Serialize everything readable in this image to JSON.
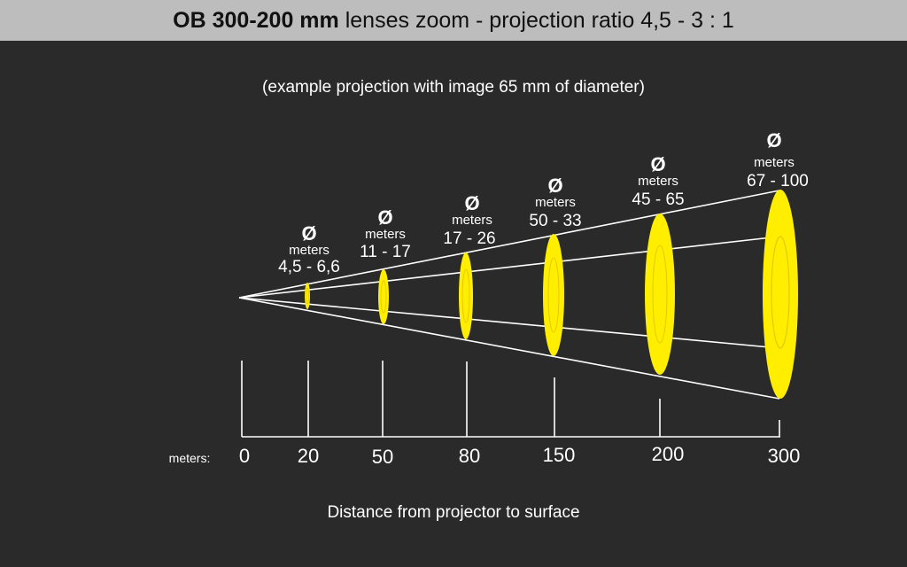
{
  "header": {
    "title_bold": "OB 300-200 mm",
    "title_rest": " lenses zoom - projection ratio 4,5 - 3 : 1"
  },
  "subtitle": "(example projection with image 65 mm of diameter)",
  "axis": {
    "unit_label": "meters:",
    "caption": "Distance from projector to surface",
    "ticks": [
      "0",
      "20",
      "50",
      "80",
      "150",
      "200",
      "300"
    ]
  },
  "projections": [
    {
      "symbol": "Ø",
      "unit": "meters",
      "range": "4,5 - 6,6"
    },
    {
      "symbol": "Ø",
      "unit": "meters",
      "range": "11 - 17"
    },
    {
      "symbol": "Ø",
      "unit": "meters",
      "range": "17 - 26"
    },
    {
      "symbol": "Ø",
      "unit": "meters",
      "range": "50 - 33"
    },
    {
      "symbol": "Ø",
      "unit": "meters",
      "range": "45 - 65"
    },
    {
      "symbol": "Ø",
      "unit": "meters",
      "range": "67 - 100"
    }
  ],
  "colors": {
    "background": "#2a2a2a",
    "title_bar": "#bdbdbd",
    "spot": "#ffee00",
    "line": "#ffffff"
  }
}
